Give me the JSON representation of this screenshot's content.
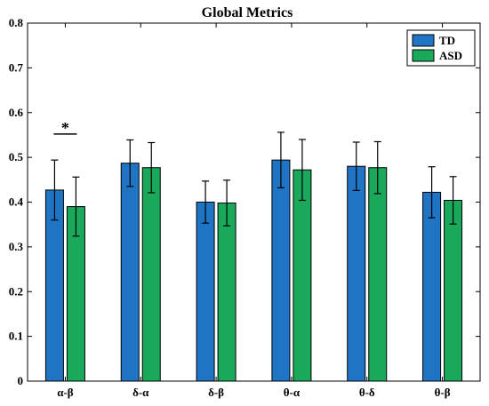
{
  "chart_data": {
    "type": "bar",
    "title": "Global Metrics",
    "xlabel": "",
    "ylabel": "",
    "categories": [
      "α-β",
      "δ-α",
      "δ-β",
      "θ-α",
      "θ-δ",
      "θ-β"
    ],
    "series": [
      {
        "name": "TD",
        "color": "#1f74c4",
        "values": [
          0.427,
          0.487,
          0.4,
          0.494,
          0.48,
          0.422
        ],
        "errors": [
          0.067,
          0.052,
          0.047,
          0.062,
          0.054,
          0.057
        ]
      },
      {
        "name": "ASD",
        "color": "#1aa85a",
        "values": [
          0.39,
          0.477,
          0.398,
          0.472,
          0.477,
          0.404
        ],
        "errors": [
          0.066,
          0.056,
          0.051,
          0.068,
          0.058,
          0.053
        ]
      }
    ],
    "ylim": [
      0,
      0.8
    ],
    "yticks": [
      "0",
      "0.1",
      "0.2",
      "0.3",
      "0.4",
      "0.5",
      "0.6",
      "0.7",
      "0.8"
    ],
    "grid": false,
    "legend_position": "top-right",
    "annotations": [
      {
        "text": "*",
        "category_index": 0,
        "y": 0.552
      }
    ]
  }
}
